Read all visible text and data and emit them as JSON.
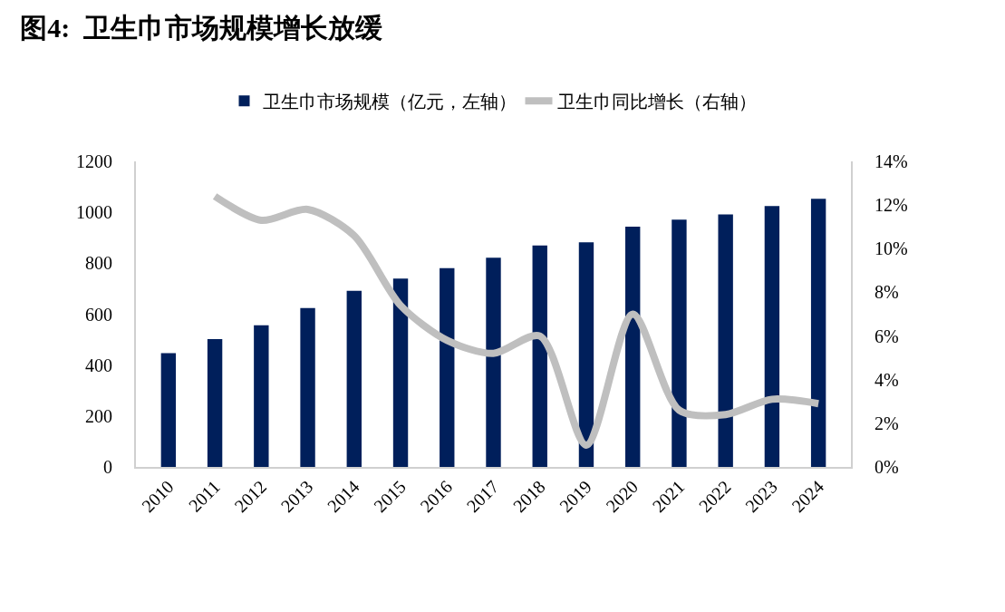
{
  "chart_data": {
    "type": "bar",
    "title": "图4:  卫生巾市场规模增长放缓",
    "categories": [
      "2010",
      "2011",
      "2012",
      "2013",
      "2014",
      "2015",
      "2016",
      "2017",
      "2018",
      "2019",
      "2020",
      "2021",
      "2022",
      "2023",
      "2024"
    ],
    "series": [
      {
        "name": "卫生巾市场规模（亿元，左轴）",
        "color": "#001f5b",
        "values": [
          447,
          502,
          556,
          624,
          692,
          740,
          781,
          822,
          870,
          882,
          944,
          971,
          992,
          1025,
          1053
        ]
      },
      {
        "name": "卫生巾同比增长（右轴）",
        "type": "line",
        "axis": "y2",
        "color": "#bfbfbf",
        "values": [
          null,
          12.4,
          11.3,
          11.8,
          10.6,
          7.4,
          5.8,
          5.2,
          6.0,
          1.0,
          7.0,
          2.6,
          2.4,
          3.1,
          2.9
        ]
      }
    ],
    "ylim": [
      0,
      1200
    ],
    "yticks": [
      0,
      200,
      400,
      600,
      800,
      1000,
      1200
    ],
    "y2lim": [
      0,
      14
    ],
    "y2ticks": [
      {
        "value": 0,
        "label": "0%"
      },
      {
        "value": 2,
        "label": "2%"
      },
      {
        "value": 4,
        "label": "4%"
      },
      {
        "value": 6,
        "label": "6%"
      },
      {
        "value": 8,
        "label": "8%"
      },
      {
        "value": 10,
        "label": "10%"
      },
      {
        "value": 12,
        "label": "12%"
      },
      {
        "value": 14,
        "label": "14%"
      }
    ],
    "grid": false,
    "legend": "top",
    "marker": "none"
  }
}
